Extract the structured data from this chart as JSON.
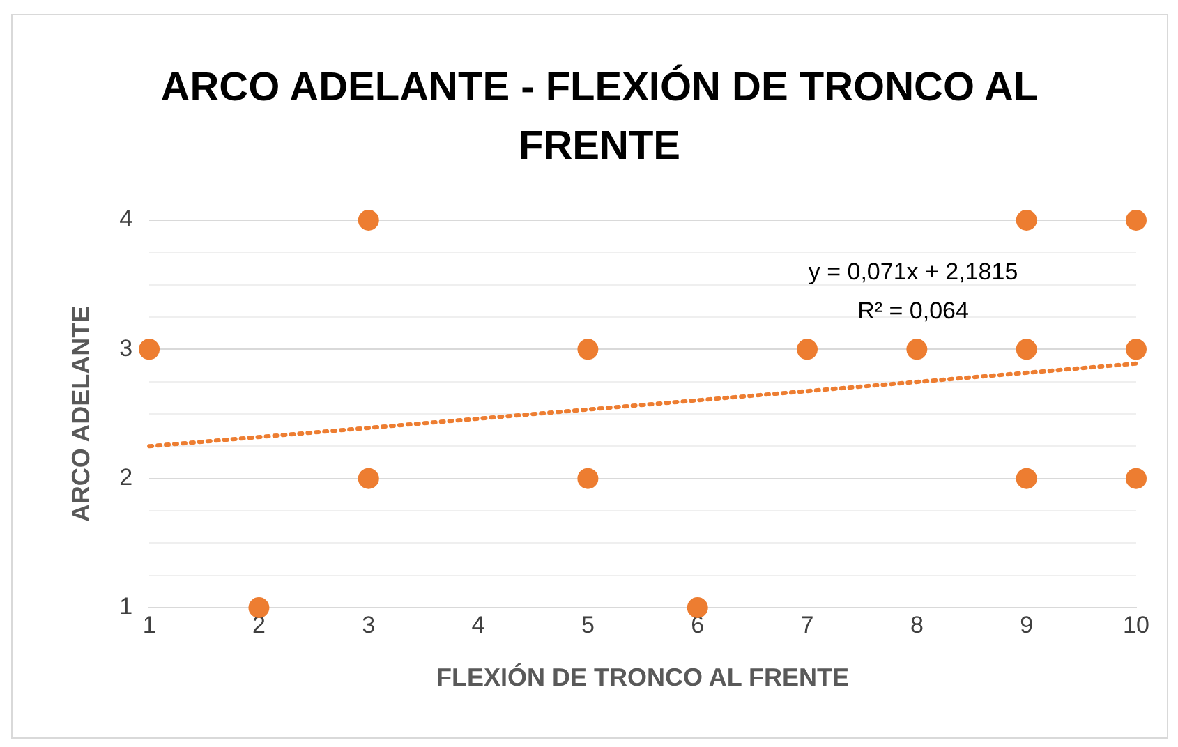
{
  "chart_data": {
    "type": "scatter",
    "title": "ARCO ADELANTE - FLEXIÓN DE TRONCO AL FRENTE",
    "xlabel": "FLEXIÓN DE TRONCO AL FRENTE",
    "ylabel": "ARCO ADELANTE",
    "xlim": [
      1,
      10
    ],
    "xticks": [
      1,
      2,
      3,
      4,
      5,
      6,
      7,
      8,
      9,
      10
    ],
    "ylim": [
      1,
      4
    ],
    "yticks": [
      1,
      {
        "value": 1.25,
        "label": null
      },
      {
        "value": 1.5,
        "label": null
      },
      {
        "value": 1.75,
        "label": null
      },
      2,
      {
        "value": 2.25,
        "label": null
      },
      {
        "value": 2.5,
        "label": null
      },
      {
        "value": 2.75,
        "label": null
      },
      3,
      {
        "value": 3.25,
        "label": null
      },
      {
        "value": 3.5,
        "label": null
      },
      {
        "value": 3.75,
        "label": null
      },
      4
    ],
    "grid": "y",
    "legend": false,
    "marker": "circle",
    "series": [
      {
        "type": "scatter",
        "color": "#ed7d31",
        "x": [
          1,
          2,
          3,
          3,
          5,
          5,
          6,
          7,
          8,
          9,
          9,
          9,
          10,
          10,
          10
        ],
        "values": [
          3,
          1,
          4,
          2,
          3,
          2,
          1,
          3,
          3,
          4,
          3,
          2,
          4,
          3,
          2
        ]
      },
      {
        "type": "line",
        "color": "#ed7d31",
        "line_style": "dotted",
        "marker": "none",
        "x": [
          1,
          10
        ],
        "values": [
          2.25,
          2.89
        ]
      }
    ],
    "annotations": [
      "y = 0,071x + 2,1815",
      "R² = 0,064"
    ]
  }
}
